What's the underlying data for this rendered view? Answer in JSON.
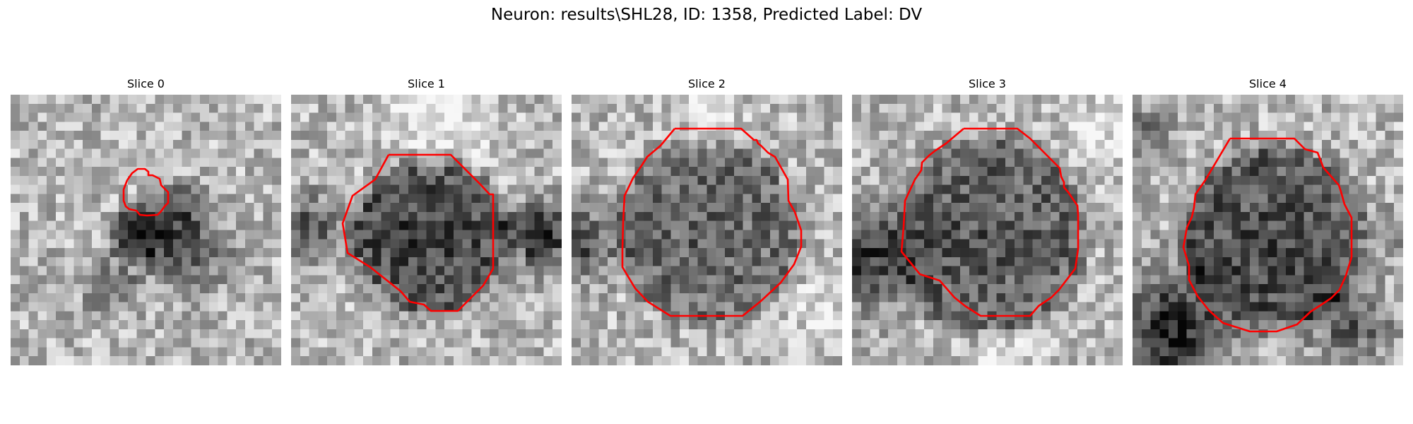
{
  "figure": {
    "title": "Neuron: results\\SHL28, ID: 1358, Predicted Label: DV"
  },
  "panels": [
    {
      "title": "Slice 0"
    },
    {
      "title": "Slice 1"
    },
    {
      "title": "Slice 2"
    },
    {
      "title": "Slice 3"
    },
    {
      "title": "Slice 4"
    }
  ],
  "colors": {
    "contour": "#ff0000",
    "background": "#ffffff"
  }
}
